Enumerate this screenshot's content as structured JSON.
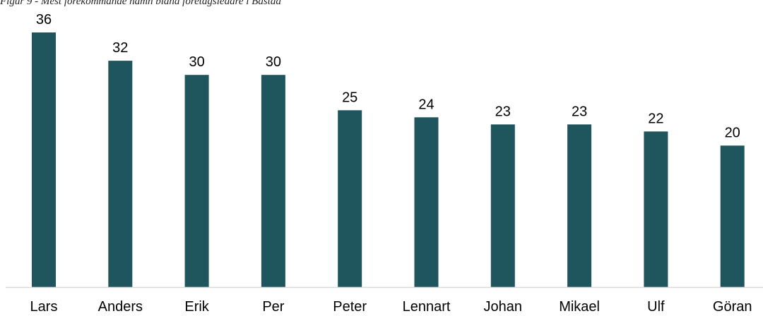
{
  "caption": "Figur 9 - Mest förekommande namn bland företagsledare i Båstad",
  "chart_data": {
    "type": "bar",
    "categories": [
      "Lars",
      "Anders",
      "Erik",
      "Per",
      "Peter",
      "Lennart",
      "Johan",
      "Mikael",
      "Ulf",
      "Göran"
    ],
    "values": [
      36,
      32,
      30,
      30,
      25,
      24,
      23,
      23,
      22,
      20
    ],
    "title": "",
    "xlabel": "",
    "ylabel": "",
    "ylim": [
      0,
      36
    ],
    "grid": false,
    "legend": "none",
    "bar_color": "#1f555d",
    "axis_color": "#d9d9d9",
    "data_labels": true
  }
}
